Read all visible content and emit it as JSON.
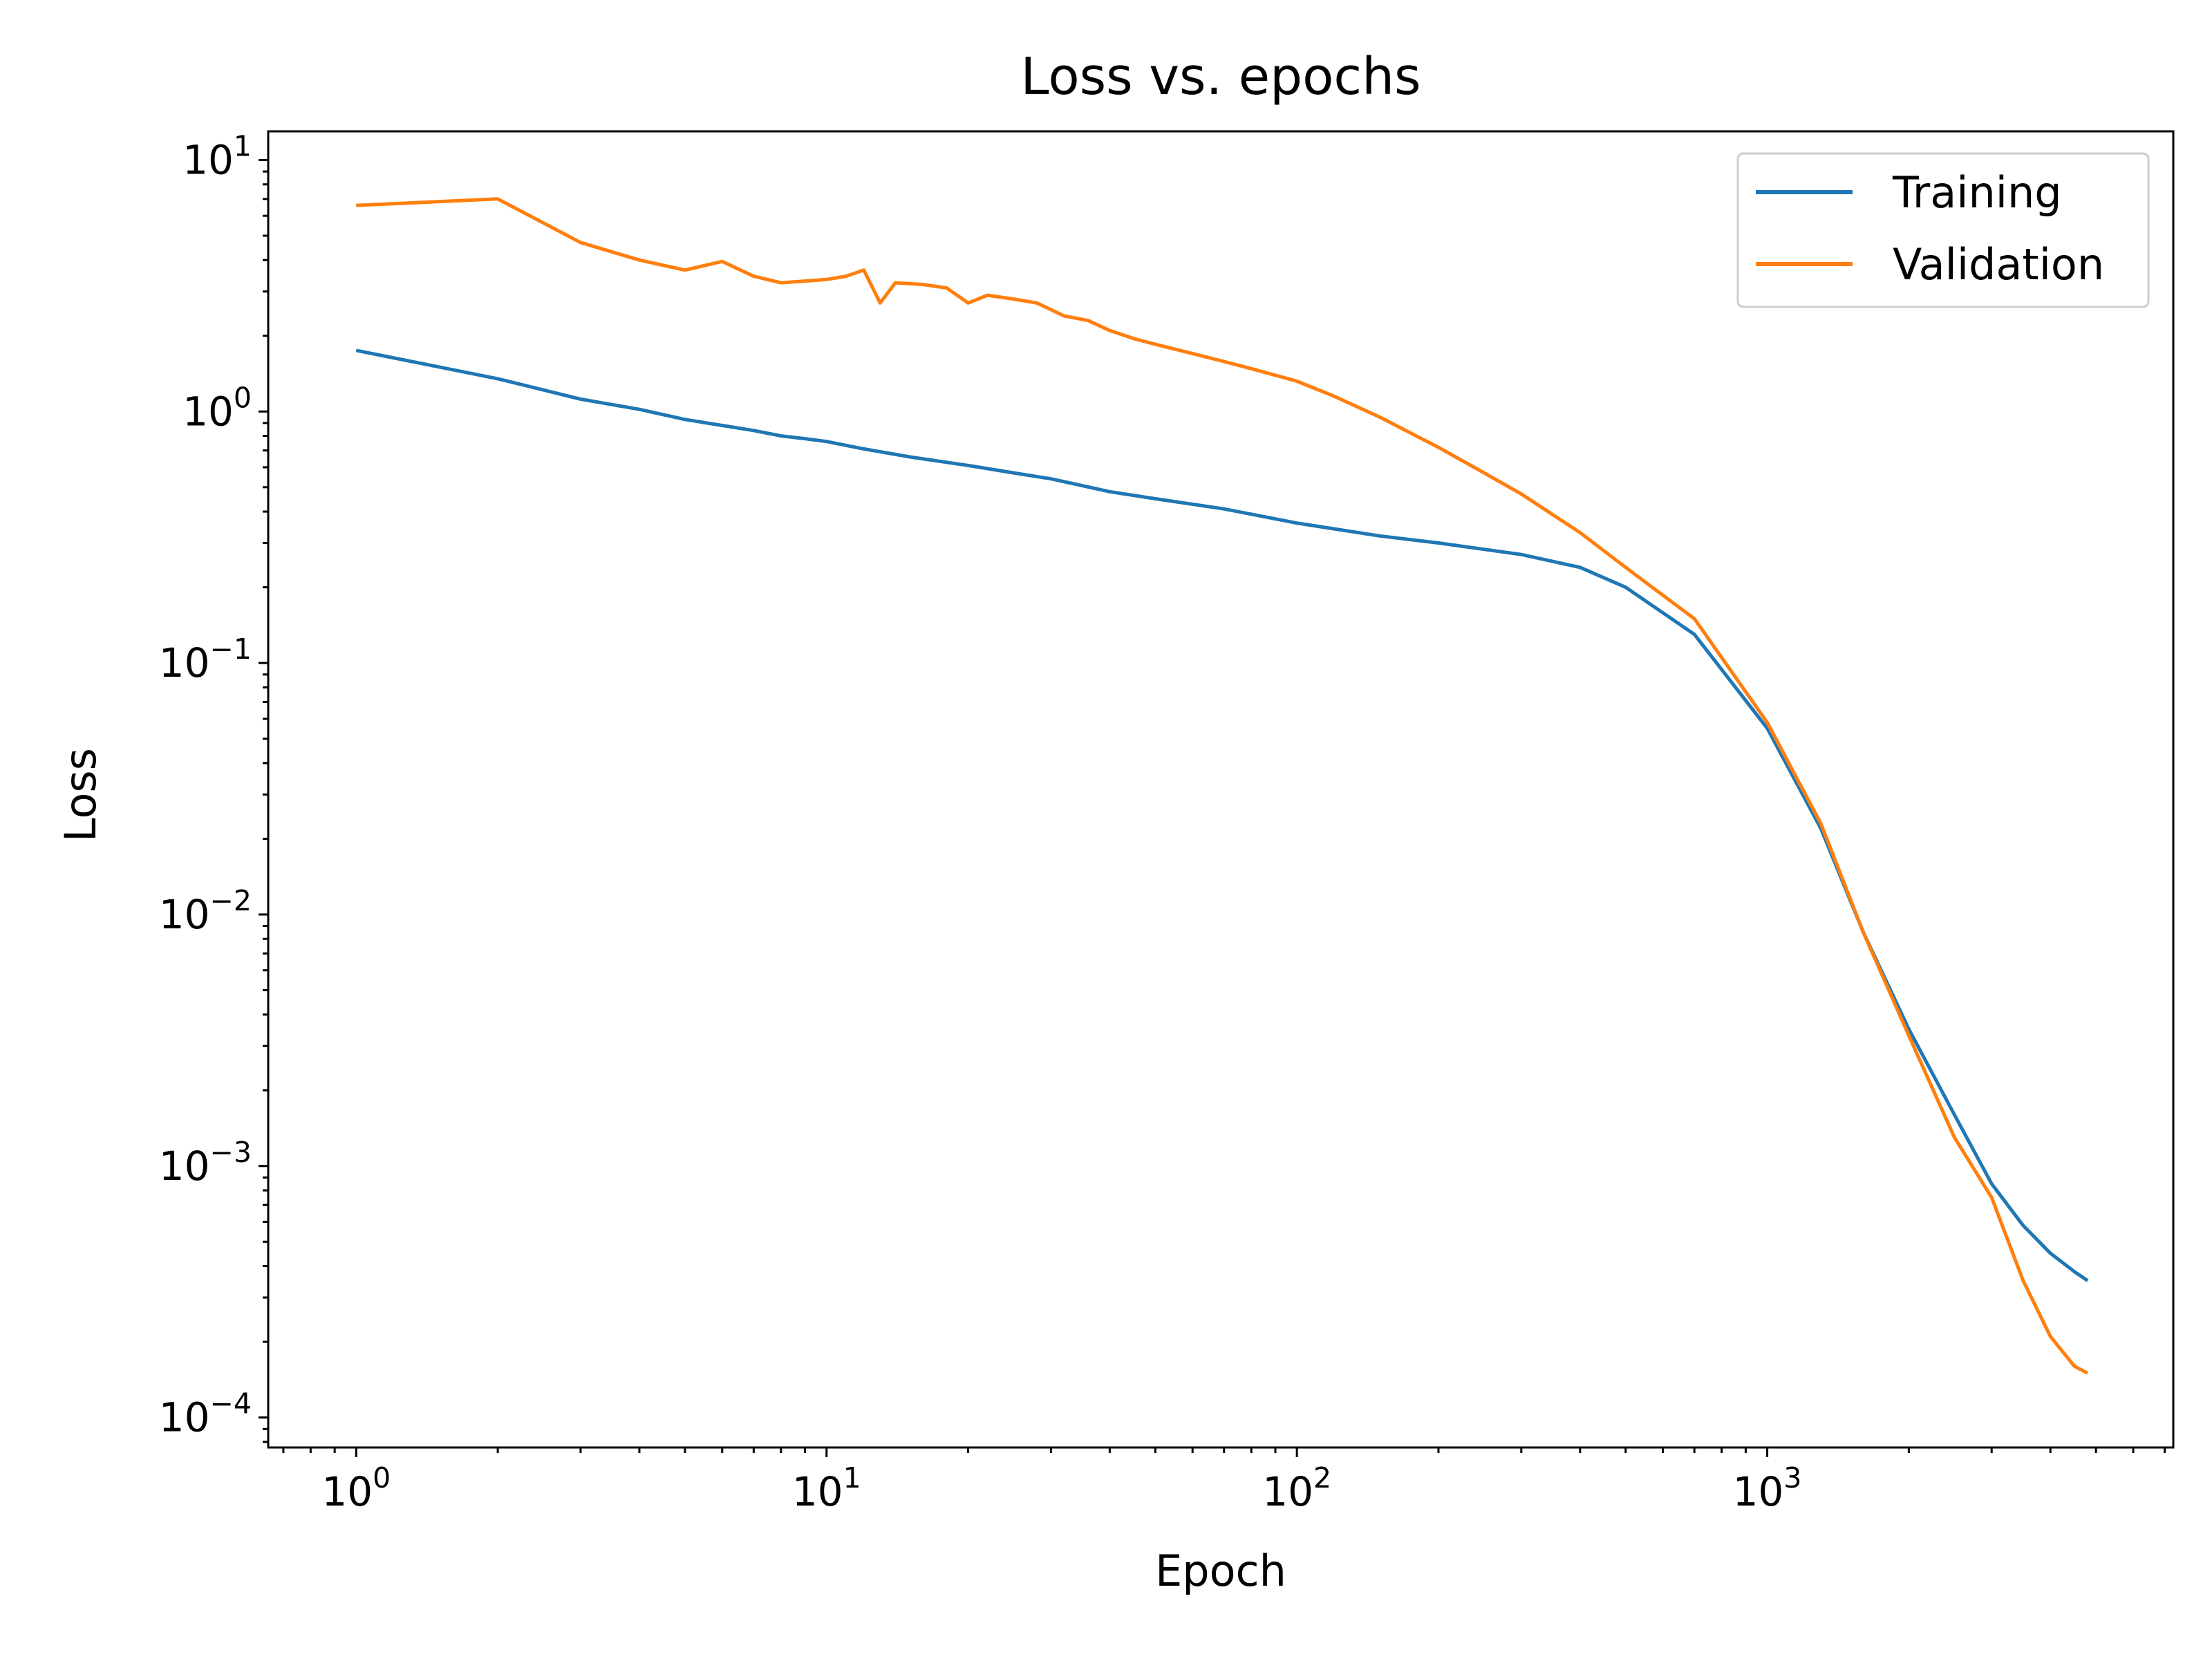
{
  "chart_data": {
    "type": "line",
    "title": "Loss vs. epochs",
    "xlabel": "Epoch",
    "ylabel": "Loss",
    "xscale": "log",
    "yscale": "log",
    "xlim": [
      0.65,
      7300
    ],
    "ylim": [
      7.6e-05,
      13
    ],
    "grid": false,
    "legend_position": "top-right",
    "x_ticks": [
      {
        "value": 1,
        "base": "10",
        "exp": "0"
      },
      {
        "value": 10,
        "base": "10",
        "exp": "1"
      },
      {
        "value": 100,
        "base": "10",
        "exp": "2"
      },
      {
        "value": 1000,
        "base": "10",
        "exp": "3"
      }
    ],
    "y_ticks": [
      {
        "value": 0.0001,
        "base": "10",
        "exp": "−4"
      },
      {
        "value": 0.001,
        "base": "10",
        "exp": "−3"
      },
      {
        "value": 0.01,
        "base": "10",
        "exp": "−2"
      },
      {
        "value": 0.1,
        "base": "10",
        "exp": "−1"
      },
      {
        "value": 1,
        "base": "10",
        "exp": "0"
      },
      {
        "value": 10,
        "base": "10",
        "exp": "1"
      }
    ],
    "series": [
      {
        "name": "Training",
        "color": "#1f77b4",
        "x": [
          1,
          2,
          3,
          4,
          5,
          6,
          7,
          8,
          9,
          10,
          12,
          15,
          20,
          25,
          30,
          40,
          50,
          70,
          100,
          150,
          200,
          300,
          400,
          500,
          700,
          1000,
          1300,
          1600,
          2000,
          2500,
          3000,
          3500,
          4000,
          4500,
          4800
        ],
        "y": [
          1.75,
          1.35,
          1.12,
          1.02,
          0.93,
          0.88,
          0.84,
          0.8,
          0.78,
          0.76,
          0.71,
          0.66,
          0.61,
          0.57,
          0.54,
          0.48,
          0.45,
          0.41,
          0.36,
          0.32,
          0.3,
          0.27,
          0.24,
          0.2,
          0.13,
          0.055,
          0.022,
          0.0085,
          0.0035,
          0.0016,
          0.00085,
          0.00058,
          0.00045,
          0.00038,
          0.00035
        ]
      },
      {
        "name": "Validation",
        "color": "#ff7f0e",
        "x": [
          1,
          2,
          3,
          4,
          5,
          6,
          7,
          8,
          9,
          10,
          11,
          12,
          13,
          14,
          16,
          18,
          20,
          22,
          25,
          28,
          32,
          36,
          40,
          45,
          50,
          60,
          70,
          80,
          100,
          120,
          150,
          200,
          250,
          300,
          400,
          500,
          700,
          1000,
          1300,
          1600,
          2000,
          2500,
          3000,
          3500,
          4000,
          4500,
          4800
        ],
        "y": [
          6.6,
          7.0,
          4.7,
          4.0,
          3.65,
          3.95,
          3.45,
          3.25,
          3.3,
          3.35,
          3.45,
          3.65,
          2.7,
          3.25,
          3.2,
          3.1,
          2.7,
          2.9,
          2.8,
          2.7,
          2.4,
          2.3,
          2.1,
          1.95,
          1.85,
          1.7,
          1.58,
          1.48,
          1.32,
          1.15,
          0.95,
          0.72,
          0.57,
          0.47,
          0.33,
          0.24,
          0.15,
          0.058,
          0.023,
          0.0085,
          0.0033,
          0.0013,
          0.00075,
          0.00035,
          0.00021,
          0.00016,
          0.00015
        ]
      }
    ]
  }
}
